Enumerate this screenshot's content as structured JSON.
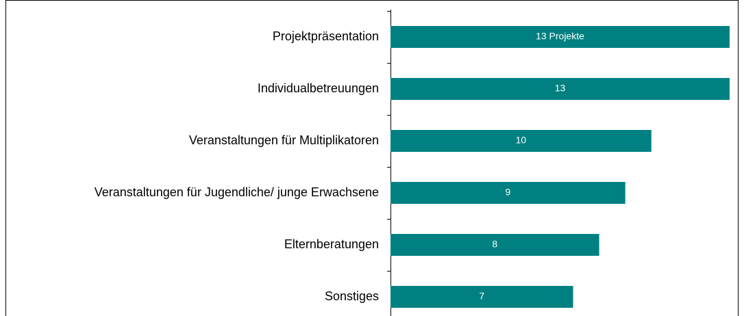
{
  "chart_data": {
    "type": "hbar",
    "categories": [
      "Projektpräsentation",
      "Individualbetreuungen",
      "Veranstaltungen für Multiplikatoren",
      "Veranstaltungen für Jugendliche/ junge Erwachsene",
      "Elternberatungen",
      "Sonstiges"
    ],
    "values": [
      13,
      13,
      10,
      9,
      8,
      7
    ],
    "value_labels": [
      "13 Projekte",
      "13",
      "10",
      "9",
      "8",
      "7"
    ],
    "color": "#008080"
  }
}
